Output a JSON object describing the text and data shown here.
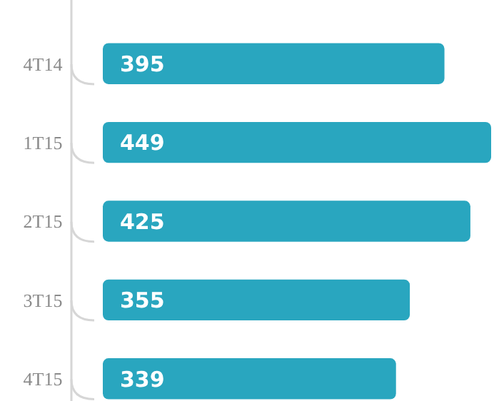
{
  "chart_data": {
    "type": "bar",
    "orientation": "horizontal",
    "categories": [
      "4T14",
      "1T15",
      "2T15",
      "3T15",
      "4T15"
    ],
    "values": [
      395,
      449,
      425,
      355,
      339
    ],
    "color": "#29a6bf",
    "data_labels": true
  }
}
